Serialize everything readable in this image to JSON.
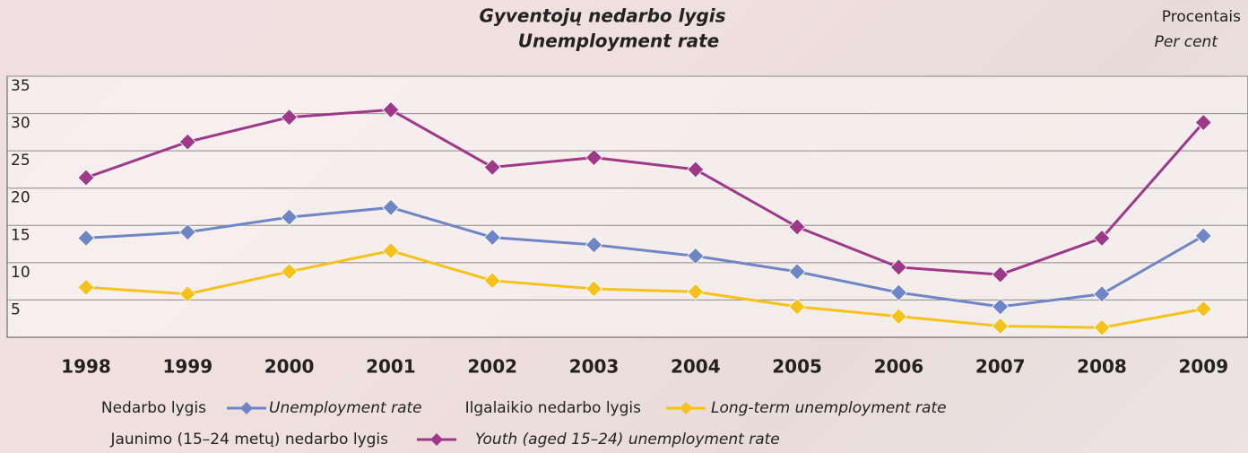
{
  "chart_data": {
    "type": "line",
    "title": "Gyventojų nedarbo lygis",
    "subtitle": "Unemployment rate",
    "unit_label": "Procentais",
    "unit_label_en": "Per cent",
    "categories": [
      "1998",
      "1999",
      "2000",
      "2001",
      "2002",
      "2003",
      "2004",
      "2005",
      "2006",
      "2007",
      "2008",
      "2009"
    ],
    "ylim": [
      0,
      35
    ],
    "yticks": [
      5,
      10,
      15,
      20,
      25,
      30,
      35
    ],
    "grid": true,
    "series": [
      {
        "name": "Unemployment rate",
        "name_lt": "Nedarbo lygis",
        "color": "#6f86c6",
        "values": [
          13.3,
          14.1,
          16.1,
          17.4,
          13.4,
          12.4,
          10.9,
          8.8,
          6.0,
          4.1,
          5.8,
          13.6
        ]
      },
      {
        "name": "Long-term unemployment rate",
        "name_lt": "Ilgalaikio nedarbo lygis",
        "color": "#f6c21a",
        "values": [
          6.7,
          5.8,
          8.8,
          11.6,
          7.6,
          6.5,
          6.1,
          4.1,
          2.8,
          1.5,
          1.3,
          3.8
        ]
      },
      {
        "name": "Youth (aged 15–24) unemployment rate",
        "name_lt": "Jaunimo (15–24 metų) nedarbo lygis",
        "color": "#a0388a",
        "values": [
          21.4,
          26.2,
          29.5,
          30.5,
          22.8,
          24.1,
          22.5,
          14.8,
          9.4,
          8.4,
          13.3,
          28.8
        ]
      }
    ]
  }
}
